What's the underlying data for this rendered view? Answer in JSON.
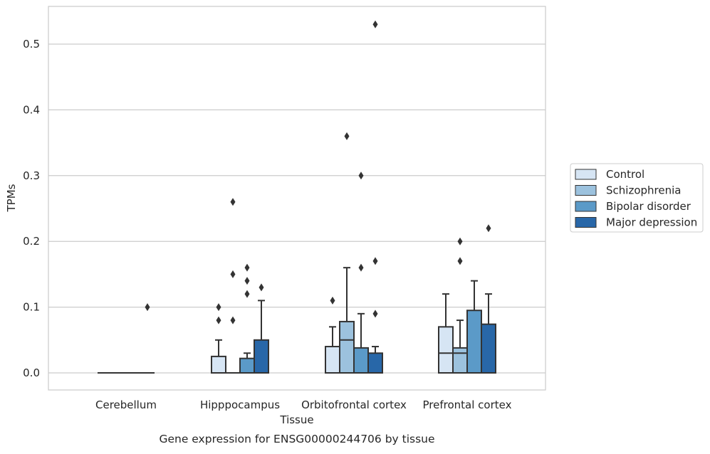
{
  "caption": "Gene expression for ENSG00000244706 by tissue",
  "chart_data": {
    "type": "box",
    "title": "",
    "xlabel": "Tissue",
    "ylabel": "TPMs",
    "ylim": [
      -0.026,
      0.557
    ],
    "yticks": [
      0.0,
      0.1,
      0.2,
      0.3,
      0.4,
      0.5
    ],
    "ytick_labels": [
      "0.0",
      "0.1",
      "0.2",
      "0.3",
      "0.4",
      "0.5"
    ],
    "grid": "horizontal",
    "legend_position": "right",
    "categories": [
      "Cerebellum",
      "Hipppocampus",
      "Orbitofrontal cortex",
      "Prefrontal cortex"
    ],
    "series": [
      {
        "name": "Control",
        "color": "#d6e5f4",
        "boxes": [
          {
            "q1": 0,
            "median": 0,
            "q3": 0,
            "whisker_low": 0,
            "whisker_high": 0,
            "outliers": []
          },
          {
            "q1": 0,
            "median": 0,
            "q3": 0.025,
            "whisker_low": 0,
            "whisker_high": 0.05,
            "outliers": [
              0.08,
              0.1
            ]
          },
          {
            "q1": 0,
            "median": 0,
            "q3": 0.04,
            "whisker_low": 0,
            "whisker_high": 0.07,
            "outliers": [
              0.11
            ]
          },
          {
            "q1": 0,
            "median": 0.03,
            "q3": 0.07,
            "whisker_low": 0,
            "whisker_high": 0.12,
            "outliers": []
          }
        ]
      },
      {
        "name": "Schizophrenia",
        "color": "#9cc2de",
        "boxes": [
          {
            "q1": 0,
            "median": 0,
            "q3": 0,
            "whisker_low": 0,
            "whisker_high": 0,
            "outliers": []
          },
          {
            "q1": 0,
            "median": 0,
            "q3": 0,
            "whisker_low": 0,
            "whisker_high": 0,
            "outliers": [
              0.08,
              0.15,
              0.26
            ]
          },
          {
            "q1": 0,
            "median": 0.05,
            "q3": 0.078,
            "whisker_low": 0,
            "whisker_high": 0.16,
            "outliers": [
              0.36
            ]
          },
          {
            "q1": 0,
            "median": 0.03,
            "q3": 0.038,
            "whisker_low": 0,
            "whisker_high": 0.08,
            "outliers": [
              0.17,
              0.2
            ]
          }
        ]
      },
      {
        "name": "Bipolar disorder",
        "color": "#5b9ac8",
        "boxes": [
          {
            "q1": 0,
            "median": 0,
            "q3": 0,
            "whisker_low": 0,
            "whisker_high": 0,
            "outliers": []
          },
          {
            "q1": 0,
            "median": 0,
            "q3": 0.022,
            "whisker_low": 0,
            "whisker_high": 0.03,
            "outliers": [
              0.12,
              0.14,
              0.16
            ]
          },
          {
            "q1": 0,
            "median": 0,
            "q3": 0.038,
            "whisker_low": 0,
            "whisker_high": 0.09,
            "outliers": [
              0.16,
              0.3
            ]
          },
          {
            "q1": 0,
            "median": 0,
            "q3": 0.095,
            "whisker_low": 0,
            "whisker_high": 0.14,
            "outliers": []
          }
        ]
      },
      {
        "name": "Major depression",
        "color": "#2867a8",
        "boxes": [
          {
            "q1": 0,
            "median": 0,
            "q3": 0,
            "whisker_low": 0,
            "whisker_high": 0,
            "outliers": [
              0.1
            ]
          },
          {
            "q1": 0,
            "median": 0,
            "q3": 0.05,
            "whisker_low": 0,
            "whisker_high": 0.11,
            "outliers": [
              0.13
            ]
          },
          {
            "q1": 0,
            "median": 0,
            "q3": 0.03,
            "whisker_low": 0,
            "whisker_high": 0.04,
            "outliers": [
              0.09,
              0.17,
              0.53
            ]
          },
          {
            "q1": 0,
            "median": 0,
            "q3": 0.074,
            "whisker_low": 0,
            "whisker_high": 0.12,
            "outliers": [
              0.22
            ]
          }
        ]
      }
    ]
  }
}
